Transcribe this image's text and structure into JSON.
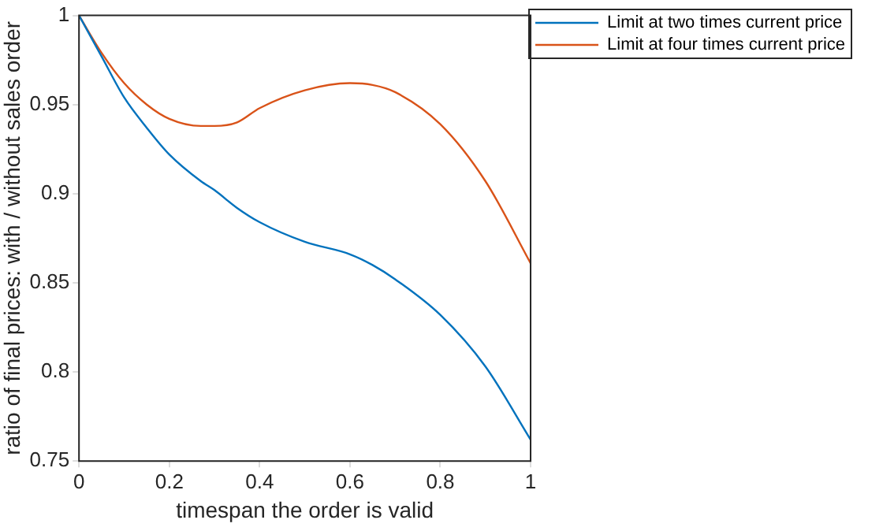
{
  "chart_data": {
    "type": "line",
    "xlabel": "timespan the order is valid",
    "ylabel": "ratio of final prices: with / without sales order",
    "xlim": [
      0,
      1
    ],
    "ylim": [
      0.75,
      1
    ],
    "xticks": [
      0,
      0.2,
      0.4,
      0.6,
      0.8,
      1
    ],
    "yticks": [
      0.75,
      0.8,
      0.85,
      0.9,
      0.95,
      1
    ],
    "grid": false,
    "legend": "top right",
    "marker": "none",
    "line_style": "solid",
    "x": [
      0,
      0.05,
      0.1,
      0.15,
      0.2,
      0.27,
      0.3,
      0.35,
      0.4,
      0.5,
      0.6,
      0.65,
      0.7,
      0.8,
      0.9,
      1
    ],
    "series": [
      {
        "name": "Limit at two times current price",
        "color": "#0072bd",
        "values": [
          1,
          0.977,
          0.954,
          0.937,
          0.922,
          0.907,
          0.902,
          0.892,
          0.884,
          0.873,
          0.866,
          0.86,
          0.852,
          0.832,
          0.803,
          0.762
        ]
      },
      {
        "name": "Limit at four times current price",
        "color": "#d95319",
        "values": [
          1,
          0.979,
          0.962,
          0.95,
          0.942,
          0.938,
          0.938,
          0.94,
          0.948,
          0.958,
          0.962,
          0.961,
          0.957,
          0.939,
          0.907,
          0.861
        ]
      }
    ]
  }
}
